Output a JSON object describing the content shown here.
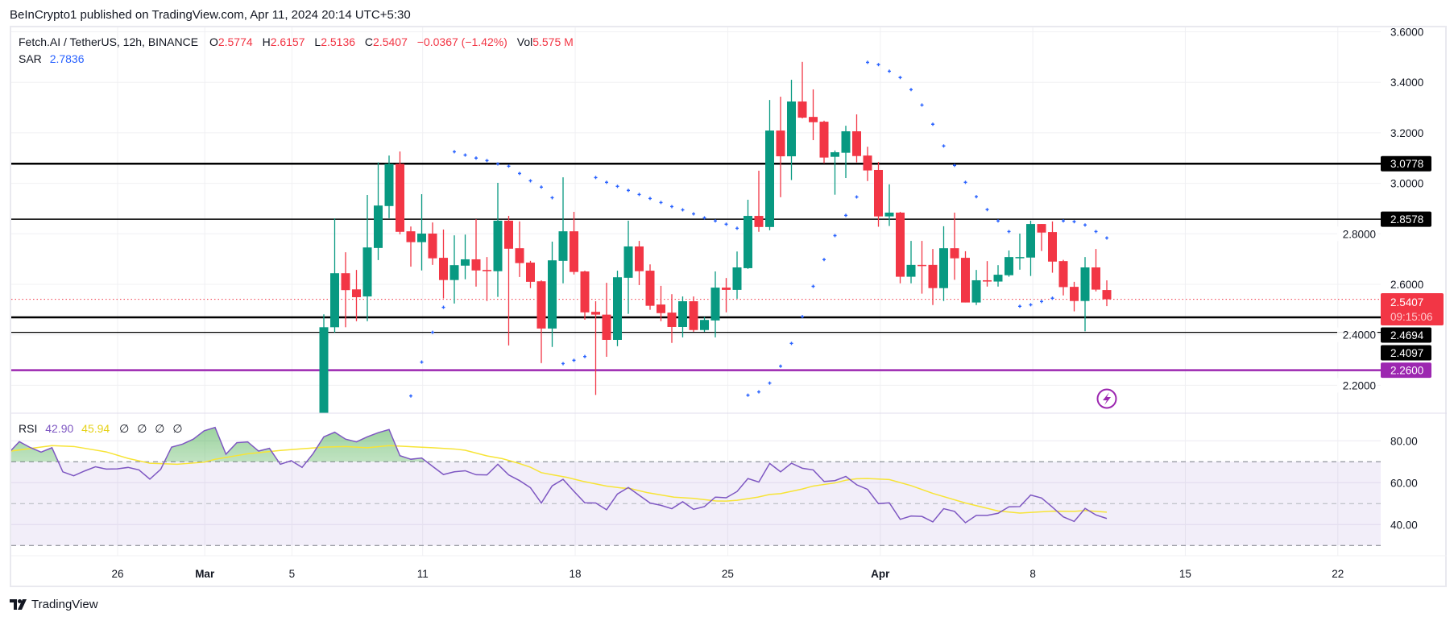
{
  "header": {
    "published": "BeInCrypto1 published on TradingView.com, Apr 11, 2024 20:14 UTC+5:30"
  },
  "legend": {
    "symbol": "Fetch.AI / TetherUS, 12h, BINANCE",
    "o_label": "O",
    "o": "2.5774",
    "h_label": "H",
    "h": "2.6157",
    "l_label": "L",
    "l": "2.5136",
    "c_label": "C",
    "c": "2.5407",
    "change": "−0.0367 (−1.42%)",
    "vol_label": "Vol",
    "vol": "5.575 M",
    "sar_label": "SAR",
    "sar": "2.7836"
  },
  "rsi_legend": {
    "label": "RSI",
    "rsi": "42.90",
    "ma": "45.94",
    "extra": [
      "∅",
      "∅",
      "∅",
      "∅"
    ]
  },
  "colors": {
    "up": "#089981",
    "down": "#f23645",
    "sar": "#2962ff",
    "rsi": "#7e57c2",
    "rsi_ma": "#f7e436",
    "support": "#9c27b0",
    "level": "#000000"
  },
  "current_price": {
    "value": "2.5407",
    "countdown": "09:15:06",
    "price": 2.5407
  },
  "levels": [
    {
      "label": "3.0778",
      "price": 3.0778
    },
    {
      "label": "2.8578",
      "price": 2.8578
    },
    {
      "label": "2.4694",
      "price": 2.4694
    },
    {
      "label": "2.4097",
      "price": 2.4097
    },
    {
      "label": "2.2600",
      "price": 2.26
    }
  ],
  "footer": {
    "brand": "TradingView"
  },
  "chart_data": {
    "type": "candlestick",
    "title": "Fetch.AI / TetherUS, 12h, BINANCE",
    "ylim": [
      2.2,
      3.6
    ],
    "y_ticks": [
      "3.6000",
      "3.4000",
      "3.2000",
      "3.0000",
      "2.8000",
      "2.6000",
      "2.4000",
      "2.2000"
    ],
    "y_tick_values": [
      3.6,
      3.4,
      3.2,
      3.0,
      2.8,
      2.6,
      2.4,
      2.2
    ],
    "x_ticks": [
      {
        "label": "26",
        "day": 0,
        "bold": false
      },
      {
        "label": "Mar",
        "day": 4,
        "bold": true
      },
      {
        "label": "5",
        "day": 8,
        "bold": false
      },
      {
        "label": "11",
        "day": 14,
        "bold": false
      },
      {
        "label": "18",
        "day": 21,
        "bold": false
      },
      {
        "label": "25",
        "day": 28,
        "bold": false
      },
      {
        "label": "Apr",
        "day": 35,
        "bold": true
      },
      {
        "label": "8",
        "day": 42,
        "bold": false
      },
      {
        "label": "15",
        "day": 49,
        "bold": false
      },
      {
        "label": "22",
        "day": 56,
        "bold": false
      }
    ],
    "ohlc_fields": [
      "open",
      "high",
      "low",
      "close"
    ],
    "candles": [
      [
        2.08,
        2.481,
        2.07,
        2.43
      ],
      [
        2.43,
        2.861,
        2.409,
        2.644
      ],
      [
        2.644,
        2.727,
        2.43,
        2.577
      ],
      [
        2.58,
        2.657,
        2.454,
        2.549
      ],
      [
        2.552,
        2.954,
        2.454,
        2.746
      ],
      [
        2.744,
        3.083,
        2.696,
        2.912
      ],
      [
        2.91,
        3.11,
        2.862,
        3.077
      ],
      [
        3.077,
        3.126,
        2.798,
        2.808
      ],
      [
        2.81,
        2.829,
        2.67,
        2.767
      ],
      [
        2.767,
        2.957,
        2.655,
        2.801
      ],
      [
        2.801,
        2.845,
        2.677,
        2.703
      ],
      [
        2.705,
        2.817,
        2.544,
        2.617
      ],
      [
        2.617,
        2.794,
        2.524,
        2.676
      ],
      [
        2.674,
        2.797,
        2.62,
        2.699
      ],
      [
        2.699,
        2.858,
        2.591,
        2.655
      ],
      [
        2.657,
        2.708,
        2.534,
        2.652
      ],
      [
        2.652,
        3.002,
        2.55,
        2.852
      ],
      [
        2.852,
        2.871,
        2.358,
        2.741
      ],
      [
        2.743,
        2.849,
        2.629,
        2.684
      ],
      [
        2.686,
        2.693,
        2.585,
        2.61
      ],
      [
        2.612,
        2.616,
        2.288,
        2.425
      ],
      [
        2.425,
        2.769,
        2.352,
        2.695
      ],
      [
        2.693,
        3.024,
        2.604,
        2.81
      ],
      [
        2.81,
        2.887,
        2.639,
        2.649
      ],
      [
        2.651,
        2.654,
        2.46,
        2.489
      ],
      [
        2.491,
        2.533,
        2.162,
        2.48
      ],
      [
        2.48,
        2.606,
        2.313,
        2.38
      ],
      [
        2.38,
        2.654,
        2.355,
        2.628
      ],
      [
        2.626,
        2.852,
        2.483,
        2.75
      ],
      [
        2.75,
        2.772,
        2.597,
        2.652
      ],
      [
        2.654,
        2.679,
        2.499,
        2.515
      ],
      [
        2.52,
        2.594,
        2.454,
        2.486
      ],
      [
        2.488,
        2.561,
        2.368,
        2.431
      ],
      [
        2.431,
        2.552,
        2.39,
        2.533
      ],
      [
        2.533,
        2.552,
        2.412,
        2.419
      ],
      [
        2.419,
        2.471,
        2.412,
        2.459
      ],
      [
        2.457,
        2.651,
        2.39,
        2.587
      ],
      [
        2.587,
        2.625,
        2.489,
        2.578
      ],
      [
        2.578,
        2.73,
        2.543,
        2.667
      ],
      [
        2.664,
        2.935,
        2.661,
        2.871
      ],
      [
        2.871,
        3.05,
        2.808,
        2.827
      ],
      [
        2.827,
        3.33,
        2.814,
        3.209
      ],
      [
        3.209,
        3.343,
        2.945,
        3.107
      ],
      [
        3.107,
        3.41,
        3.013,
        3.324
      ],
      [
        3.324,
        3.481,
        3.257,
        3.26
      ],
      [
        3.263,
        3.372,
        3.171,
        3.242
      ],
      [
        3.244,
        3.248,
        3.08,
        3.102
      ],
      [
        3.105,
        3.13,
        2.955,
        3.123
      ],
      [
        3.121,
        3.228,
        3.021,
        3.206
      ],
      [
        3.206,
        3.273,
        3.083,
        3.108
      ],
      [
        3.11,
        3.145,
        3.009,
        3.051
      ],
      [
        3.053,
        3.085,
        2.828,
        2.869
      ],
      [
        2.869,
        2.996,
        2.831,
        2.884
      ],
      [
        2.884,
        2.887,
        2.604,
        2.63
      ],
      [
        2.63,
        2.772,
        2.604,
        2.677
      ],
      [
        2.677,
        2.772,
        2.563,
        2.674
      ],
      [
        2.677,
        2.74,
        2.518,
        2.585
      ],
      [
        2.585,
        2.83,
        2.534,
        2.743
      ],
      [
        2.743,
        2.884,
        2.618,
        2.703
      ],
      [
        2.705,
        2.731,
        2.528,
        2.528
      ],
      [
        2.528,
        2.657,
        2.518,
        2.616
      ],
      [
        2.616,
        2.692,
        2.591,
        2.611
      ],
      [
        2.611,
        2.676,
        2.591,
        2.638
      ],
      [
        2.636,
        2.734,
        2.63,
        2.708
      ],
      [
        2.704,
        2.801,
        2.658,
        2.708
      ],
      [
        2.706,
        2.852,
        2.633,
        2.839
      ],
      [
        2.839,
        2.839,
        2.732,
        2.805
      ],
      [
        2.807,
        2.849,
        2.646,
        2.69
      ],
      [
        2.692,
        2.697,
        2.556,
        2.589
      ],
      [
        2.59,
        2.61,
        2.493,
        2.534
      ],
      [
        2.534,
        2.708,
        2.414,
        2.667
      ],
      [
        2.667,
        2.74,
        2.572,
        2.579
      ],
      [
        2.5774,
        2.6157,
        2.5136,
        2.5407
      ]
    ],
    "sar": [
      [
        8,
        2.158
      ],
      [
        9,
        2.292
      ],
      [
        10,
        2.41
      ],
      [
        11,
        2.509
      ],
      [
        12,
        3.125
      ],
      [
        13,
        3.112
      ],
      [
        14,
        3.1
      ],
      [
        15,
        3.09
      ],
      [
        16,
        3.077
      ],
      [
        17,
        3.068
      ],
      [
        18,
        3.039
      ],
      [
        19,
        3.01
      ],
      [
        20,
        2.985
      ],
      [
        21,
        2.943
      ],
      [
        22,
        2.286
      ],
      [
        23,
        2.299
      ],
      [
        24,
        2.314
      ],
      [
        25,
        3.023
      ],
      [
        26,
        3.004
      ],
      [
        27,
        2.988
      ],
      [
        28,
        2.972
      ],
      [
        29,
        2.956
      ],
      [
        30,
        2.94
      ],
      [
        31,
        2.924
      ],
      [
        32,
        2.908
      ],
      [
        33,
        2.895
      ],
      [
        34,
        2.879
      ],
      [
        35,
        2.863
      ],
      [
        36,
        2.851
      ],
      [
        37,
        2.838
      ],
      [
        38,
        2.822
      ],
      [
        39,
        2.161
      ],
      [
        40,
        2.174
      ],
      [
        41,
        2.209
      ],
      [
        42,
        2.276
      ],
      [
        43,
        2.366
      ],
      [
        44,
        2.472
      ],
      [
        45,
        2.592
      ],
      [
        46,
        2.698
      ],
      [
        47,
        2.793
      ],
      [
        48,
        2.873
      ],
      [
        49,
        2.946
      ],
      [
        50,
        3.479
      ],
      [
        51,
        3.47
      ],
      [
        52,
        3.444
      ],
      [
        53,
        3.419
      ],
      [
        54,
        3.371
      ],
      [
        55,
        3.31
      ],
      [
        56,
        3.234
      ],
      [
        57,
        3.148
      ],
      [
        58,
        3.071
      ],
      [
        59,
        3.004
      ],
      [
        60,
        2.947
      ],
      [
        61,
        2.896
      ],
      [
        62,
        2.851
      ],
      [
        63,
        2.809
      ],
      [
        64,
        2.513
      ],
      [
        65,
        2.519
      ],
      [
        66,
        2.532
      ],
      [
        67,
        2.545
      ],
      [
        68,
        2.851
      ],
      [
        69,
        2.848
      ],
      [
        70,
        2.835
      ],
      [
        71,
        2.809
      ],
      [
        72,
        2.7836
      ]
    ],
    "rsi": {
      "first_index": -29,
      "ylim": [
        25,
        90
      ],
      "y_ticks": [
        "80.00",
        "60.00",
        "40.00"
      ],
      "y_tick_values": [
        80,
        60,
        40
      ],
      "bands": [
        70,
        50,
        30
      ],
      "values": [
        74.1,
        79.6,
        76.8,
        74.6,
        76.7,
        65.2,
        63.3,
        65.6,
        67.6,
        66.5,
        66.6,
        67.3,
        66.1,
        61.7,
        66.4,
        77.0,
        78.4,
        80.8,
        84.8,
        86.4,
        73.6,
        79.1,
        79.5,
        75.1,
        76.4,
        68.8,
        70.5,
        67.3,
        73.8,
        81.9,
        84.1,
        80.8,
        79.5,
        81.9,
        83.9,
        85.4,
        72.9,
        71.2,
        71.8,
        67.8,
        63.9,
        65.2,
        65.7,
        63.8,
        63.7,
        68.8,
        63.7,
        61.0,
        57.6,
        50.3,
        58.5,
        61.6,
        55.9,
        50.4,
        50.3,
        47.1,
        54.6,
        57.7,
        54.0,
        50.3,
        49.2,
        47.6,
        50.9,
        47.3,
        48.6,
        53.1,
        52.8,
        55.8,
        62.0,
        60.3,
        69.2,
        65.2,
        69.3,
        66.9,
        66.1,
        60.6,
        61.0,
        63.0,
        59.0,
        56.8,
        50.0,
        50.4,
        42.5,
        44.1,
        43.9,
        41.3,
        47.6,
        46.3,
        40.9,
        44.4,
        44.4,
        45.4,
        48.5,
        48.6,
        54.1,
        52.7,
        48.3,
        43.7,
        41.5,
        47.7,
        44.6,
        42.9
      ],
      "ma": [
        [
          -28.8,
          75.1
        ],
        [
          -25,
          77.7
        ],
        [
          -23,
          77.3
        ],
        [
          -20,
          74.7
        ],
        [
          -18,
          71.6
        ],
        [
          -16,
          69.3
        ],
        [
          -13.5,
          68.8
        ],
        [
          -11,
          69.8
        ],
        [
          -10,
          71.2
        ],
        [
          -7,
          73.8
        ],
        [
          -4,
          75.4
        ],
        [
          0,
          77.0
        ],
        [
          2,
          77.3
        ],
        [
          4,
          76.7
        ],
        [
          6,
          77.7
        ],
        [
          10,
          76.7
        ],
        [
          12,
          76.1
        ],
        [
          13,
          75.5
        ],
        [
          15,
          72.8
        ],
        [
          16.4,
          71.5
        ],
        [
          17.9,
          69.3
        ],
        [
          19,
          67.4
        ],
        [
          20,
          64.8
        ],
        [
          21,
          63.8
        ],
        [
          22.3,
          62.6
        ],
        [
          23.8,
          60.7
        ],
        [
          26,
          58.4
        ],
        [
          27.3,
          57.5
        ],
        [
          28.2,
          57.2
        ],
        [
          29.7,
          55.3
        ],
        [
          32.2,
          53.1
        ],
        [
          34,
          52.5
        ],
        [
          36,
          51.3
        ],
        [
          37,
          51.2
        ],
        [
          38,
          51.6
        ],
        [
          39.9,
          53.1
        ],
        [
          41,
          54.4
        ],
        [
          42,
          54.8
        ],
        [
          44,
          57.0
        ],
        [
          45,
          58.4
        ],
        [
          47,
          59.9
        ],
        [
          48,
          61.2
        ],
        [
          49,
          61.9
        ],
        [
          50,
          62.0
        ],
        [
          52,
          61.5
        ],
        [
          54,
          58.6
        ],
        [
          56,
          54.9
        ],
        [
          59,
          50.3
        ],
        [
          62,
          46.5
        ],
        [
          64,
          45.5
        ],
        [
          67,
          46.4
        ],
        [
          69,
          46.3
        ],
        [
          70,
          46.7
        ],
        [
          72,
          45.94
        ]
      ]
    }
  }
}
